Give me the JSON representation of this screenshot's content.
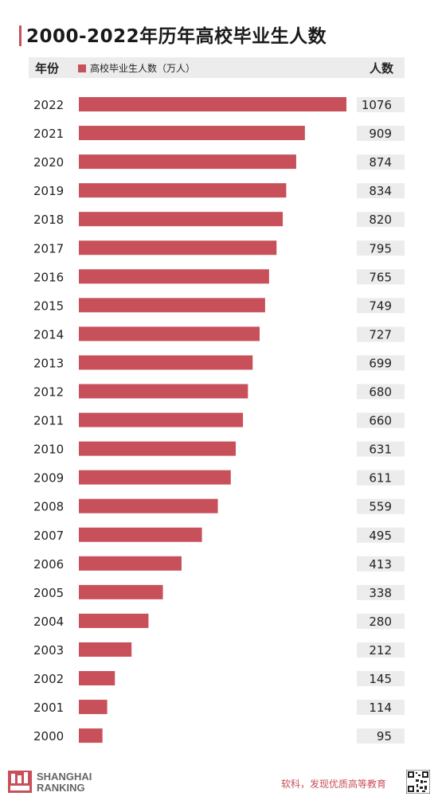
{
  "page": {
    "title": "2000-2022年历年高校毕业生人数",
    "col_year": "年份",
    "col_count": "人数",
    "legend": "高校毕业生人数（万人）"
  },
  "footer": {
    "brand_line1": "SHANGHAI",
    "brand_line2": "RANKING",
    "logo_text": "软科",
    "slogan": "软科，发现优质高等教育"
  },
  "colors": {
    "accent": "#c8505a",
    "value_bg": "#ececec"
  },
  "chart_data": {
    "type": "bar",
    "orientation": "horizontal",
    "title": "2000-2022年历年高校毕业生人数",
    "series": [
      {
        "name": "高校毕业生人数（万人）"
      }
    ],
    "categories": [
      "2022",
      "2021",
      "2020",
      "2019",
      "2018",
      "2017",
      "2016",
      "2015",
      "2014",
      "2013",
      "2012",
      "2011",
      "2010",
      "2009",
      "2008",
      "2007",
      "2006",
      "2005",
      "2004",
      "2003",
      "2002",
      "2001",
      "2000"
    ],
    "values": [
      1076,
      909,
      874,
      834,
      820,
      795,
      765,
      749,
      727,
      699,
      680,
      660,
      631,
      611,
      559,
      495,
      413,
      338,
      280,
      212,
      145,
      114,
      95
    ],
    "ylim": [
      0,
      1076
    ],
    "grid": false
  }
}
